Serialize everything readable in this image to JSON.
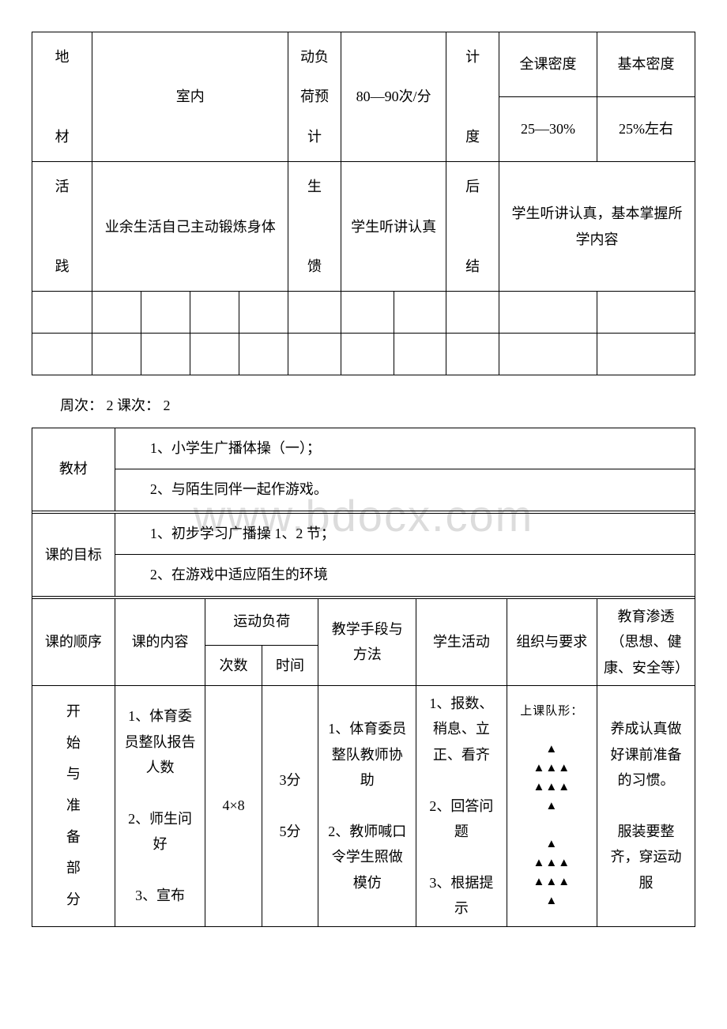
{
  "table1": {
    "row1": {
      "c1": "地\n\n材",
      "c2": "室内",
      "c3": "动负荷预计",
      "c4": "80—90次/分",
      "c5": "计\n\n度",
      "c6a": "全课密度",
      "c6b": "基本密度",
      "c7a": "25—30%",
      "c7b": "25%左右"
    },
    "row2": {
      "c1": "活\n\n践",
      "c2": "业余生活自己主动锻炼身体",
      "c3": "生\n\n馈",
      "c4": "学生听讲认真",
      "c5": "后\n\n结",
      "c6": "学生听讲认真，基本掌握所学内容"
    }
  },
  "sectionTitle": "周次： 2 课次： 2",
  "table2": {
    "r1": {
      "label": "教材",
      "line1": "1、小学生广播体操（一）；",
      "line2": "2、与陌生同伴一起作游戏。"
    },
    "r2": {
      "label": "课的目标",
      "line1": "1、初步学习广播操 1、2 节；",
      "line2": "2、在游戏中适应陌生的环境"
    },
    "header": {
      "c1": "课的顺序",
      "c2": "课的内容",
      "c3": "运动负荷",
      "c3a": "次数",
      "c3b": "时间",
      "c4": "教学手段与方法",
      "c5": "学生活动",
      "c6": "组织与要求",
      "c7": "教育渗透（思想、健康、安全等）"
    },
    "body": {
      "c1": "开\n始\n与\n准\n备\n部\n分",
      "c2": "1、体育委员整队报告人数\n\n2、师生问好\n\n3、宣布",
      "c3a": "4×8",
      "c3b": "3分\n\n5分",
      "c4": "1、体育委员整队教师协助\n\n2、教师喊口令学生照做模仿",
      "c5": "1、报数、稍息、立正、看齐\n\n2、回答问题\n\n3、根据提示",
      "c6": "上课队形：\n\n▲\n▲▲▲\n▲▲▲\n▲\n\n▲\n▲▲▲\n▲▲▲\n▲",
      "c7": "养成认真做好课前准备的习惯。\n\n服装要整齐，穿运动服"
    }
  },
  "watermark": "www.bdocx.com",
  "colors": {
    "text": "#000000",
    "border": "#000000",
    "background": "#ffffff",
    "watermark": "#dcdcdc"
  }
}
